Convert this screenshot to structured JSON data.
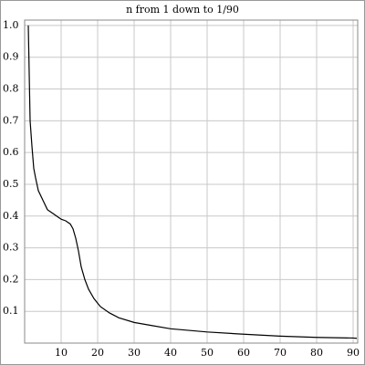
{
  "chart_data": {
    "type": "line",
    "title": "n from 1 down to 1/90",
    "x": [
      1,
      1.5,
      2,
      2.5,
      3,
      3.75,
      5,
      6.25,
      7.5,
      8.75,
      10,
      11.25,
      12.5,
      13.25,
      14,
      14.75,
      15.5,
      16.5,
      17.5,
      19,
      20.75,
      23.25,
      25.75,
      30,
      35,
      40,
      50,
      60,
      70,
      80,
      90,
      91
    ],
    "series": [
      {
        "color": "#000000",
        "values": [
          1.0,
          0.7,
          0.62,
          0.55,
          0.52,
          0.48,
          0.45,
          0.42,
          0.41,
          0.4,
          0.39,
          0.385,
          0.375,
          0.36,
          0.33,
          0.29,
          0.24,
          0.2,
          0.17,
          0.14,
          0.115,
          0.095,
          0.08,
          0.065,
          0.055,
          0.045,
          0.035,
          0.028,
          0.022,
          0.018,
          0.016,
          0.015
        ]
      }
    ],
    "xlim": [
      0,
      91.25
    ],
    "ylim": [
      0,
      1.017
    ],
    "xticks": [
      10,
      20,
      30,
      40,
      50,
      60,
      70,
      80,
      90
    ],
    "yticks": [
      0.1,
      0.2,
      0.3,
      0.4,
      0.5,
      0.6,
      0.7,
      0.8,
      0.9,
      {
        "value": 1,
        "label": "1.0"
      }
    ],
    "grid": true
  }
}
